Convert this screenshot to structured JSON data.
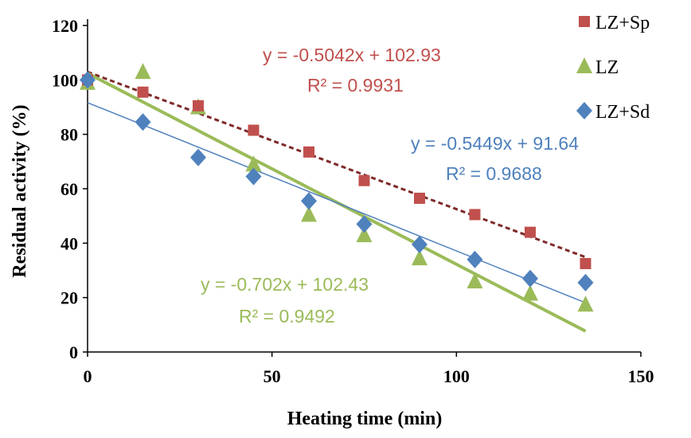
{
  "chart_data": {
    "type": "scatter",
    "title": "",
    "xlabel": "Heating time (min)",
    "ylabel": "Residual activity (%)",
    "xlim": [
      0,
      150
    ],
    "ylim": [
      0,
      120
    ],
    "x_ticks": [
      "0",
      "50",
      "100",
      "150"
    ],
    "y_ticks": [
      "0",
      "20",
      "40",
      "60",
      "80",
      "100",
      "120"
    ],
    "grid": false,
    "legend_position": "top-right",
    "x": [
      0,
      15,
      30,
      45,
      60,
      75,
      90,
      105,
      120,
      135
    ],
    "series": [
      {
        "name": "LZ+Sp",
        "marker": "square",
        "color": "#c0504d",
        "values": [
          100,
          95.5,
          90.5,
          81.5,
          73.5,
          63,
          56.5,
          50.5,
          44,
          32.5
        ],
        "trendline": {
          "slope": -0.5042,
          "intercept": 102.93,
          "style": "dashed",
          "color": "#7f2a2a",
          "equation": "y = -0.5042x + 102.93",
          "r2_label": "R² = 0.9931"
        }
      },
      {
        "name": "LZ",
        "marker": "triangle",
        "color": "#9bbb59",
        "values": [
          99,
          103,
          90,
          69,
          50.5,
          43,
          34.5,
          26,
          21.5,
          17.5
        ],
        "trendline": {
          "slope": -0.702,
          "intercept": 102.43,
          "style": "solid-thick",
          "color": "#9bbb59",
          "equation": "y = -0.702x + 102.43",
          "r2_label": "R² = 0.9492"
        }
      },
      {
        "name": "LZ+Sd",
        "marker": "diamond",
        "color": "#4f81bd",
        "values": [
          100,
          84.5,
          71.5,
          64.5,
          55.5,
          47,
          39.5,
          34,
          27,
          25.5
        ],
        "trendline": {
          "slope": -0.5449,
          "intercept": 91.64,
          "style": "solid-thin",
          "color": "#4f81bd",
          "equation": "y = -0.5449x + 91.64",
          "r2_label": "R² = 0.9688"
        }
      }
    ]
  }
}
